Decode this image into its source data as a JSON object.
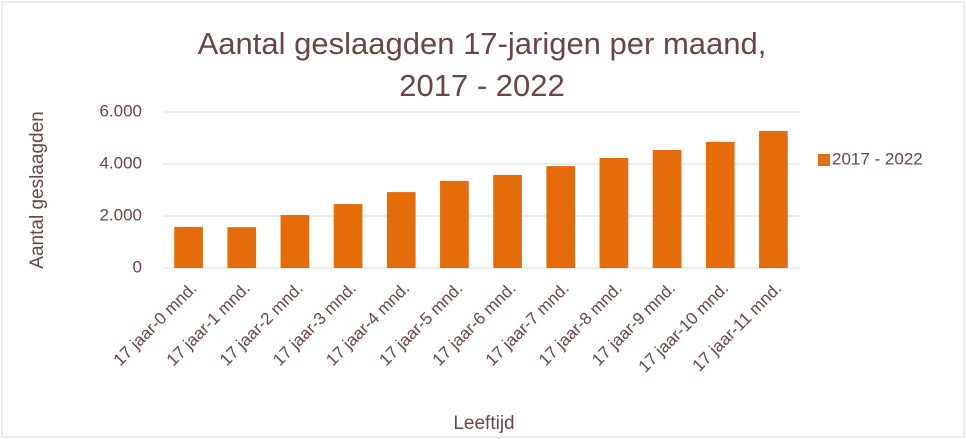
{
  "chart_data": {
    "type": "bar",
    "title": [
      "Aantal geslaagden 17-jarigen per maand,",
      "2017 - 2022"
    ],
    "x_label": "Leeftijd",
    "y_label": "Aantal geslaagden",
    "categories": [
      "17 jaar-0 mnd.",
      "17 jaar-1 mnd.",
      "17 jaar-2 mnd.",
      "17 jaar-3 mnd.",
      "17 jaar-4 mnd.",
      "17 jaar-5 mnd.",
      "17 jaar-6 mnd.",
      "17 jaar-7 mnd.",
      "17 jaar-8 mnd.",
      "17 jaar-9 mnd.",
      "17 jaar-10 mnd.",
      "17 jaar-11 mnd."
    ],
    "series": [
      {
        "name": "2017 - 2022",
        "color": "#e46c0a",
        "values": [
          1580,
          1570,
          2040,
          2460,
          2920,
          3350,
          3580,
          3920,
          4230,
          4540,
          4850,
          5270
        ]
      }
    ],
    "ylim": [
      0,
      6000
    ],
    "yticks": [
      0,
      {
        "value": 2000,
        "label": "2.000"
      },
      {
        "value": 4000,
        "label": "4.000"
      },
      {
        "value": 6000,
        "label": "6.000"
      }
    ],
    "grid": true,
    "legend": "right"
  }
}
